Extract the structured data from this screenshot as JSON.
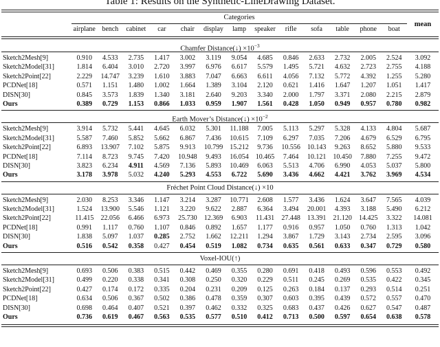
{
  "title": "Table 1: Results on the Synthetic-LineDrawing Dataset.",
  "header": {
    "group_label": "Categories",
    "columns": [
      "airplane",
      "bench",
      "cabinet",
      "car",
      "chair",
      "display",
      "lamp",
      "speaker",
      "rifle",
      "sofa",
      "table",
      "phone",
      "boat"
    ],
    "mean_label": "mean"
  },
  "sections": [
    {
      "title_main": "Chamfer Distance(↓) ×10",
      "title_sup": "−3",
      "rows": [
        {
          "label": "Sketch2Mesh[9]",
          "label_bold": false,
          "values": [
            "0.910",
            "4.533",
            "2.735",
            "1.417",
            "3.002",
            "3.119",
            "9.054",
            "4.685",
            "0.846",
            "2.633",
            "2.732",
            "2.005",
            "2.524",
            "3.092"
          ],
          "bold": []
        },
        {
          "label": "Sketch2Model[31]",
          "label_bold": false,
          "values": [
            "1.814",
            "6.404",
            "3.010",
            "2.720",
            "3.997",
            "6.976",
            "6.617",
            "5.579",
            "1.495",
            "5.721",
            "4.632",
            "2.723",
            "2.755",
            "4.188"
          ],
          "bold": []
        },
        {
          "label": "Sketch2Point[22]",
          "label_bold": false,
          "values": [
            "2.229",
            "14.747",
            "3.239",
            "1.610",
            "3.883",
            "7.047",
            "6.663",
            "6.611",
            "4.056",
            "7.132",
            "5.772",
            "4.392",
            "1.255",
            "5.280"
          ],
          "bold": []
        },
        {
          "label": "PCDNet[18]",
          "label_bold": false,
          "values": [
            "0.571",
            "1.151",
            "1.480",
            "1.002",
            "1.664",
            "1.389",
            "3.104",
            "2.120",
            "0.621",
            "1.416",
            "1.647",
            "1.207",
            "1.051",
            "1.417"
          ],
          "bold": []
        },
        {
          "label": "DISN[30]",
          "label_bold": false,
          "values": [
            "0.845",
            "3.573",
            "1.839",
            "1.340",
            "3.181",
            "2.640",
            "9.203",
            "3.340",
            "2.000",
            "1.797",
            "3.371",
            "2.080",
            "2.215",
            "2.879"
          ],
          "bold": []
        },
        {
          "label": "Ours",
          "label_bold": true,
          "values": [
            "0.389",
            "0.729",
            "1.153",
            "0.866",
            "1.033",
            "0.959",
            "1.907",
            "1.561",
            "0.428",
            "1.050",
            "0.949",
            "0.957",
            "0.780",
            "0.982"
          ],
          "bold": [
            0,
            1,
            2,
            3,
            4,
            5,
            6,
            7,
            8,
            9,
            10,
            11,
            12,
            13
          ]
        }
      ]
    },
    {
      "title_main": "Earth Mover’s Distance(↓) ×10",
      "title_sup": "−2",
      "rows": [
        {
          "label": "Sketch2Mesh[9]",
          "label_bold": false,
          "values": [
            "3.914",
            "5.732",
            "5.441",
            "4.645",
            "6.032",
            "5.301",
            "11.188",
            "7.005",
            "5.113",
            "5.297",
            "5.328",
            "4.133",
            "4.804",
            "5.687"
          ],
          "bold": []
        },
        {
          "label": "Sketch2Model[31]",
          "label_bold": false,
          "values": [
            "5.587",
            "7.460",
            "5.852",
            "5.662",
            "6.867",
            "7.436",
            "10.615",
            "7.109",
            "6.297",
            "7.035",
            "7.206",
            "4.679",
            "6.529",
            "6.795"
          ],
          "bold": []
        },
        {
          "label": "Sketch2Point[22]",
          "label_bold": false,
          "values": [
            "6.893",
            "13.907",
            "7.102",
            "5.875",
            "9.913",
            "10.799",
            "15.212",
            "9.736",
            "10.556",
            "10.143",
            "9.263",
            "8.652",
            "5.880",
            "9.533"
          ],
          "bold": []
        },
        {
          "label": "PCDNet[18]",
          "label_bold": false,
          "values": [
            "7.114",
            "8.723",
            "9.745",
            "7.420",
            "10.948",
            "9.493",
            "16.054",
            "10.465",
            "7.464",
            "10.121",
            "10.450",
            "7.880",
            "7.255",
            "9.472"
          ],
          "bold": []
        },
        {
          "label": "DISN[30]",
          "label_bold": false,
          "values": [
            "3.823",
            "6.234",
            "4.911",
            "4.569",
            "7.136",
            "5.893",
            "10.469",
            "6.063",
            "5.513",
            "4.706",
            "6.990",
            "4.053",
            "5.037",
            "5.800"
          ],
          "bold": [
            2
          ]
        },
        {
          "label": "Ours",
          "label_bold": true,
          "values": [
            "3.178",
            "3.978",
            "5.032",
            "4.240",
            "5.293",
            "4.553",
            "6.722",
            "5.690",
            "3.436",
            "4.662",
            "4.421",
            "3.762",
            "3.969",
            "4.534"
          ],
          "bold": [
            0,
            1,
            3,
            4,
            5,
            6,
            7,
            8,
            9,
            10,
            11,
            12,
            13
          ]
        }
      ]
    },
    {
      "title_main": "Fréchet Point Cloud Distance(↓) ×10",
      "title_sup": "",
      "rows": [
        {
          "label": "Sketch2Mesh[9]",
          "label_bold": false,
          "values": [
            "2.030",
            "8.253",
            "3.346",
            "1.147",
            "3.214",
            "3.287",
            "10.771",
            "2.608",
            "1.577",
            "3.436",
            "1.624",
            "3.647",
            "7.565",
            "4.039"
          ],
          "bold": []
        },
        {
          "label": "Sketch2Model[31]",
          "label_bold": false,
          "values": [
            "1.524",
            "13.900",
            "5.546",
            "1.121",
            "3.220",
            "9.622",
            "2.887",
            "6.364",
            "3.494",
            "20.001",
            "4.393",
            "3.188",
            "5.490",
            "6.212"
          ],
          "bold": []
        },
        {
          "label": "Sketch2Point[22]",
          "label_bold": false,
          "values": [
            "11.415",
            "22.056",
            "6.466",
            "6.973",
            "25.730",
            "12.369",
            "6.903",
            "11.431",
            "27.448",
            "13.391",
            "21.120",
            "14.425",
            "3.322",
            "14.081"
          ],
          "bold": []
        },
        {
          "label": "PCDNet[18]",
          "label_bold": false,
          "values": [
            "0.991",
            "1.117",
            "0.760",
            "1.107",
            "0.846",
            "0.892",
            "1.657",
            "1.177",
            "0.916",
            "0.957",
            "1.050",
            "0.760",
            "1.313",
            "1.042"
          ],
          "bold": []
        },
        {
          "label": "DISN[30]",
          "label_bold": false,
          "values": [
            "1.838",
            "5.097",
            "1.037",
            "0.285",
            "2.752",
            "1.662",
            "12.211",
            "1.294",
            "3.867",
            "1.729",
            "3.143",
            "2.734",
            "2.595",
            "3.096"
          ],
          "bold": [
            3
          ]
        },
        {
          "label": "Ours",
          "label_bold": true,
          "values": [
            "0.516",
            "0.542",
            "0.358",
            "0.427",
            "0.454",
            "0.519",
            "1.082",
            "0.734",
            "0.635",
            "0.561",
            "0.633",
            "0.347",
            "0.729",
            "0.580"
          ],
          "bold": [
            0,
            1,
            2,
            4,
            5,
            6,
            7,
            8,
            9,
            10,
            11,
            12,
            13
          ]
        }
      ]
    },
    {
      "title_main": "Voxel-IOU(↑)",
      "title_sup": "",
      "rows": [
        {
          "label": "Sketch2Mesh[9]",
          "label_bold": false,
          "values": [
            "0.693",
            "0.506",
            "0.383",
            "0.515",
            "0.442",
            "0.469",
            "0.355",
            "0.280",
            "0.691",
            "0.418",
            "0.493",
            "0.596",
            "0.553",
            "0.492"
          ],
          "bold": []
        },
        {
          "label": "Sketch2Model[31]",
          "label_bold": false,
          "values": [
            "0.499",
            "0.220",
            "0.338",
            "0.341",
            "0.308",
            "0.250",
            "0.320",
            "0.229",
            "0.511",
            "0.245",
            "0.269",
            "0.535",
            "0.422",
            "0.345"
          ],
          "bold": []
        },
        {
          "label": "Sketch2Point[22]",
          "label_bold": false,
          "values": [
            "0.427",
            "0.174",
            "0.172",
            "0.335",
            "0.204",
            "0.231",
            "0.209",
            "0.125",
            "0.263",
            "0.184",
            "0.137",
            "0.293",
            "0.514",
            "0.251"
          ],
          "bold": []
        },
        {
          "label": "PCDNet[18]",
          "label_bold": false,
          "values": [
            "0.634",
            "0.506",
            "0.367",
            "0.502",
            "0.386",
            "0.478",
            "0.359",
            "0.307",
            "0.603",
            "0.395",
            "0.439",
            "0.572",
            "0.557",
            "0.470"
          ],
          "bold": []
        },
        {
          "label": "DISN[30]",
          "label_bold": false,
          "values": [
            "0.698",
            "0.464",
            "0.407",
            "0.521",
            "0.397",
            "0.462",
            "0.332",
            "0.325",
            "0.683",
            "0.437",
            "0.426",
            "0.627",
            "0.547",
            "0.487"
          ],
          "bold": []
        },
        {
          "label": "Ours",
          "label_bold": true,
          "values": [
            "0.736",
            "0.619",
            "0.467",
            "0.563",
            "0.535",
            "0.577",
            "0.510",
            "0.412",
            "0.713",
            "0.500",
            "0.597",
            "0.654",
            "0.638",
            "0.578"
          ],
          "bold": [
            0,
            1,
            2,
            3,
            4,
            5,
            6,
            7,
            8,
            9,
            10,
            11,
            12,
            13
          ]
        }
      ]
    }
  ]
}
